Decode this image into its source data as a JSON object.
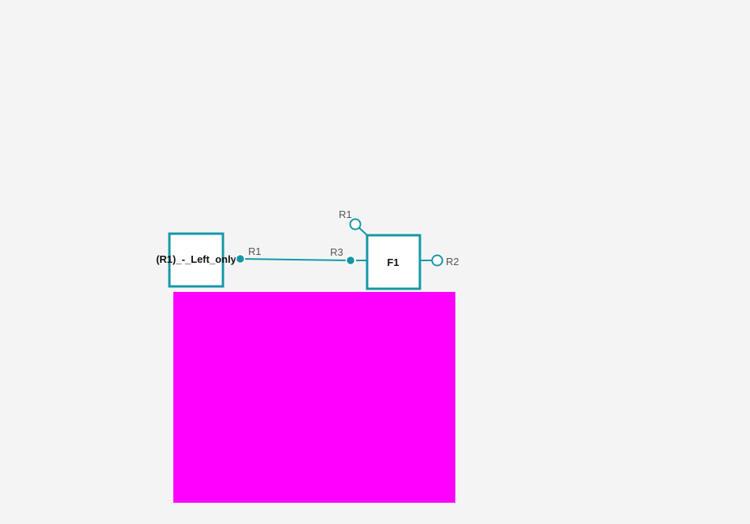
{
  "colors": {
    "background": "#f4f4f4",
    "accent": "#1597a7",
    "overlay": "#ff00ff"
  },
  "nodes": {
    "left": {
      "label": "(R1)_-_Left_only"
    },
    "f1": {
      "label": "F1"
    }
  },
  "ports": {
    "left_r1": {
      "label": "R1",
      "style": "filled"
    },
    "f1_r3": {
      "label": "R3",
      "style": "filled"
    },
    "f1_r1": {
      "label": "R1",
      "style": "open"
    },
    "f1_r2": {
      "label": "R2",
      "style": "open"
    }
  }
}
